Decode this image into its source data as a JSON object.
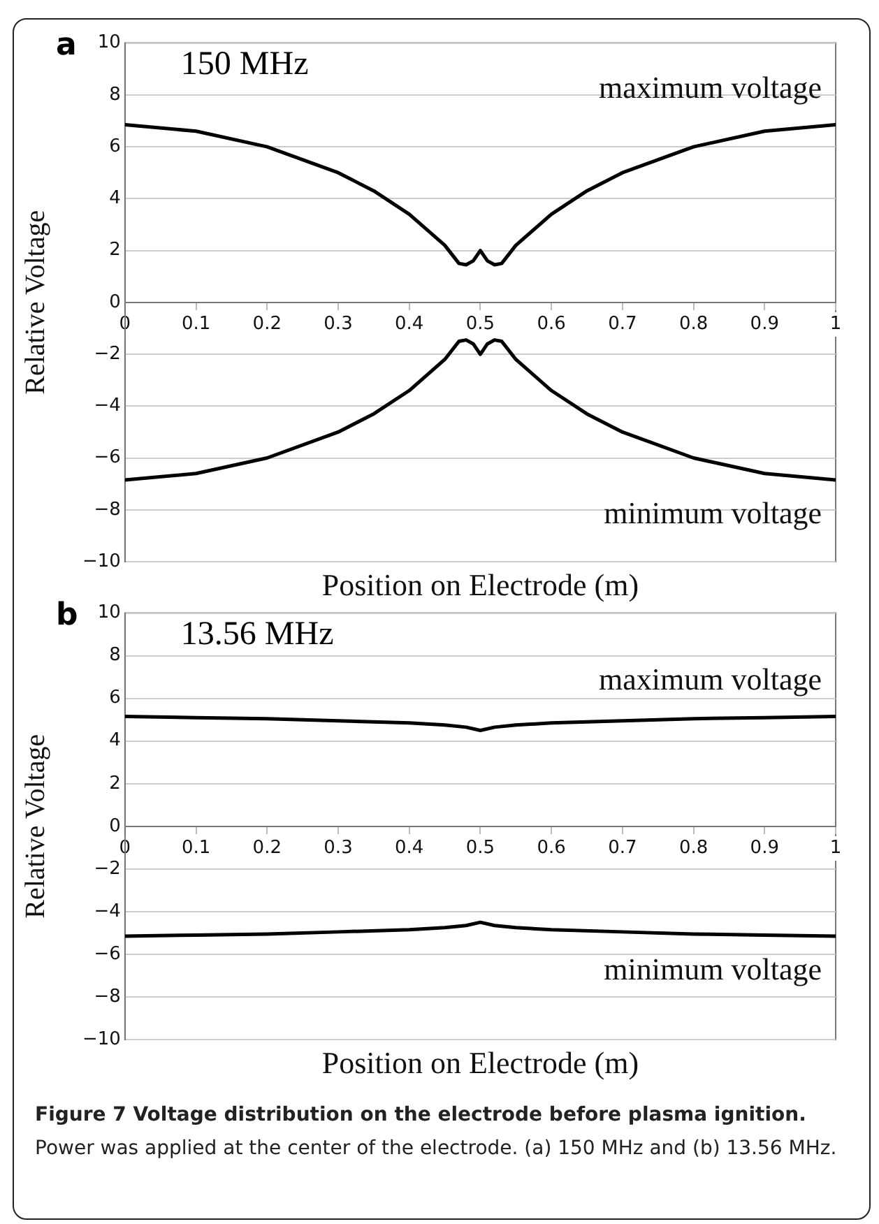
{
  "chart_data": [
    {
      "type": "line",
      "annotations": [
        "a",
        "150 MHz"
      ],
      "xlabel": "Position on Electrode (m)",
      "ylabel": "Relative Voltage",
      "xlim": [
        0,
        1
      ],
      "xticks": [
        0,
        0.1,
        0.2,
        0.3,
        0.4,
        0.5,
        0.6,
        0.7,
        0.8,
        0.9,
        1
      ],
      "ylim": [
        -10,
        10
      ],
      "yticks": [
        {
          "value": -10,
          "label": "−10"
        },
        {
          "value": -8,
          "label": "−8"
        },
        {
          "value": -6,
          "label": "−6"
        },
        {
          "value": -4,
          "label": "−4"
        },
        {
          "value": -2,
          "label": "−2"
        },
        0,
        2,
        4,
        6,
        8,
        10
      ],
      "grid": "y",
      "marker": "none",
      "legend": false,
      "x": [
        0,
        0.1,
        0.2,
        0.3,
        0.35,
        0.4,
        0.45,
        0.47,
        0.48,
        0.49,
        0.5,
        0.51,
        0.52,
        0.53,
        0.55,
        0.6,
        0.65,
        0.7,
        0.8,
        0.9,
        1
      ],
      "series": [
        {
          "name": "maximum voltage",
          "color": "#000000",
          "values": [
            6.85,
            6.6,
            6.0,
            5.0,
            4.3,
            3.4,
            2.2,
            1.5,
            1.45,
            1.6,
            2.0,
            1.6,
            1.45,
            1.5,
            2.2,
            3.4,
            4.3,
            5.0,
            6.0,
            6.6,
            6.85
          ]
        },
        {
          "name": "minimum voltage",
          "color": "#000000",
          "values": [
            -6.85,
            -6.6,
            -6.0,
            -5.0,
            -4.3,
            -3.4,
            -2.2,
            -1.5,
            -1.45,
            -1.6,
            -2.0,
            -1.6,
            -1.45,
            -1.5,
            -2.2,
            -3.4,
            -4.3,
            -5.0,
            -6.0,
            -6.6,
            -6.85
          ]
        }
      ]
    },
    {
      "type": "line",
      "annotations": [
        "b",
        "13.56 MHz",
        "Figure 7 Voltage distribution on the electrode before plasma ignition.",
        "Power was applied at the center of the electrode. (a) 150 MHz and (b) 13.56 MHz."
      ],
      "xlabel": "Position on Electrode (m)",
      "ylabel": "Relative Voltage",
      "xlim": [
        0,
        1
      ],
      "xticks": [
        0,
        0.1,
        0.2,
        0.3,
        0.4,
        0.5,
        0.6,
        0.7,
        0.8,
        0.9,
        1
      ],
      "ylim": [
        -10,
        10
      ],
      "yticks": [
        {
          "value": -10,
          "label": "−10"
        },
        {
          "value": -8,
          "label": "−8"
        },
        {
          "value": -6,
          "label": "−6"
        },
        {
          "value": -4,
          "label": "−4"
        },
        {
          "value": -2,
          "label": "−2"
        },
        0,
        2,
        4,
        6,
        8,
        10
      ],
      "grid": "y",
      "marker": "none",
      "legend": false,
      "x": [
        0,
        0.1,
        0.2,
        0.3,
        0.4,
        0.45,
        0.48,
        0.5,
        0.52,
        0.55,
        0.6,
        0.7,
        0.8,
        0.9,
        1
      ],
      "series": [
        {
          "name": "maximum voltage",
          "color": "#000000",
          "values": [
            5.15,
            5.1,
            5.05,
            4.95,
            4.85,
            4.75,
            4.65,
            4.5,
            4.65,
            4.75,
            4.85,
            4.95,
            5.05,
            5.1,
            5.15
          ]
        },
        {
          "name": "minimum voltage",
          "color": "#000000",
          "values": [
            -5.15,
            -5.1,
            -5.05,
            -4.95,
            -4.85,
            -4.75,
            -4.65,
            -4.5,
            -4.65,
            -4.75,
            -4.85,
            -4.95,
            -5.05,
            -5.1,
            -5.15
          ]
        }
      ]
    }
  ]
}
